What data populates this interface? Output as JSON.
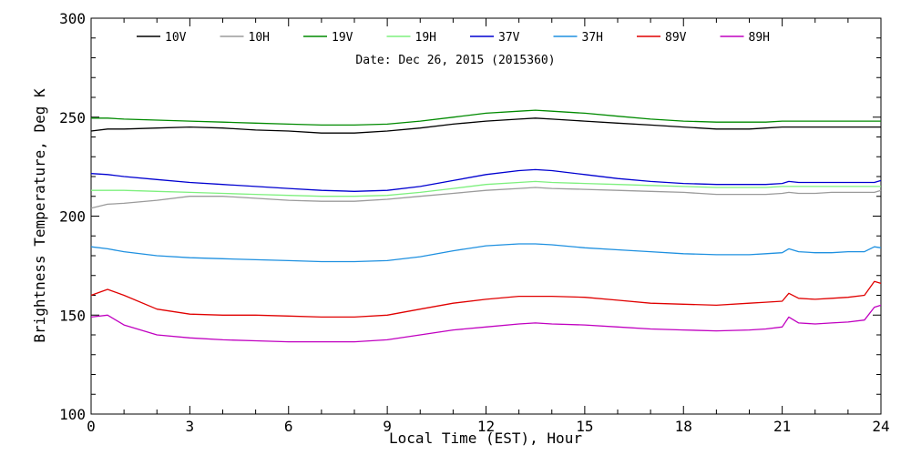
{
  "chart_data": {
    "type": "line",
    "title": "",
    "annotation": "Date: Dec 26, 2015 (2015360)",
    "xlabel": "Local Time (EST), Hour",
    "ylabel": "Brightness Temperature, Deg K",
    "xlim": [
      0,
      24
    ],
    "ylim": [
      100,
      300
    ],
    "xticks": [
      0,
      3,
      6,
      9,
      12,
      15,
      18,
      21,
      24
    ],
    "yticks": [
      100,
      150,
      200,
      250,
      300
    ],
    "grid": false,
    "legend_position": "top",
    "x": [
      0,
      0.5,
      1,
      2,
      3,
      4,
      5,
      6,
      7,
      8,
      9,
      10,
      11,
      12,
      13,
      13.5,
      14,
      15,
      16,
      17,
      18,
      19,
      20,
      20.5,
      21,
      21.2,
      21.5,
      22,
      22.5,
      23,
      23.5,
      23.8,
      24
    ],
    "series": [
      {
        "name": "10V",
        "color": "#000000",
        "values": [
          243,
          244,
          244,
          244.5,
          245,
          244.5,
          243.5,
          243,
          242,
          242,
          243,
          244.5,
          246.5,
          248,
          249,
          249.5,
          249,
          248,
          247,
          246,
          245,
          244,
          244,
          244.5,
          245,
          245,
          245,
          245,
          245,
          245,
          245,
          245,
          245
        ]
      },
      {
        "name": "10H",
        "color": "#9b9b9b",
        "values": [
          204,
          206,
          206.5,
          208,
          210,
          210,
          209,
          208,
          207.5,
          207.5,
          208.5,
          210,
          211.5,
          213,
          214,
          214.5,
          214,
          213.5,
          213,
          212.5,
          212,
          211,
          211,
          211,
          211.5,
          212,
          211.5,
          211.5,
          212,
          212,
          212,
          212,
          213
        ]
      },
      {
        "name": "19V",
        "color": "#008a00",
        "values": [
          249.5,
          249.5,
          249,
          248.5,
          248,
          247.5,
          247,
          246.5,
          246,
          246,
          246.5,
          248,
          250,
          252,
          253,
          253.5,
          253,
          252,
          250.5,
          249,
          248,
          247.5,
          247.5,
          247.5,
          248,
          248,
          248,
          248,
          248,
          248,
          248,
          248,
          248
        ]
      },
      {
        "name": "19H",
        "color": "#7ef07e",
        "values": [
          213,
          213,
          213,
          212.5,
          212,
          211.5,
          211,
          210.5,
          210,
          210,
          210.5,
          212,
          214,
          216,
          217,
          217.5,
          217,
          216.5,
          216,
          215.5,
          215,
          214.5,
          214.5,
          214.5,
          215,
          215,
          215,
          215,
          215,
          215,
          215,
          215,
          215
        ]
      },
      {
        "name": "37V",
        "color": "#0000d0",
        "values": [
          221.5,
          221,
          220,
          218.5,
          217,
          216,
          215,
          214,
          213,
          212.5,
          213,
          215,
          218,
          221,
          223,
          223.5,
          223,
          221,
          219,
          217.5,
          216.5,
          216,
          216,
          216,
          216.5,
          217.5,
          217,
          217,
          217,
          217,
          217,
          217,
          218
        ]
      },
      {
        "name": "37H",
        "color": "#1e90e0",
        "values": [
          184.5,
          183.5,
          182,
          180,
          179,
          178.5,
          178,
          177.5,
          177,
          177,
          177.5,
          179.5,
          182.5,
          185,
          186,
          186,
          185.5,
          184,
          183,
          182,
          181,
          180.5,
          180.5,
          181,
          181.5,
          183.5,
          182,
          181.5,
          181.5,
          182,
          182,
          184.5,
          184
        ]
      },
      {
        "name": "89V",
        "color": "#e00000",
        "values": [
          160,
          163,
          160,
          153,
          150.5,
          150,
          150,
          149.5,
          149,
          149,
          150,
          153,
          156,
          158,
          159.5,
          159.5,
          159.5,
          159,
          157.5,
          156,
          155.5,
          155,
          156,
          156.5,
          157,
          161,
          158.5,
          158,
          158.5,
          159,
          160,
          167,
          166
        ]
      },
      {
        "name": "89H",
        "color": "#c000c0",
        "values": [
          149,
          150,
          145,
          140,
          138.5,
          137.5,
          137,
          136.5,
          136.5,
          136.5,
          137.5,
          140,
          142.5,
          144,
          145.5,
          146,
          145.5,
          145,
          144,
          143,
          142.5,
          142,
          142.5,
          143,
          144,
          149,
          146,
          145.5,
          146,
          146.5,
          147.5,
          154,
          155
        ]
      }
    ]
  }
}
